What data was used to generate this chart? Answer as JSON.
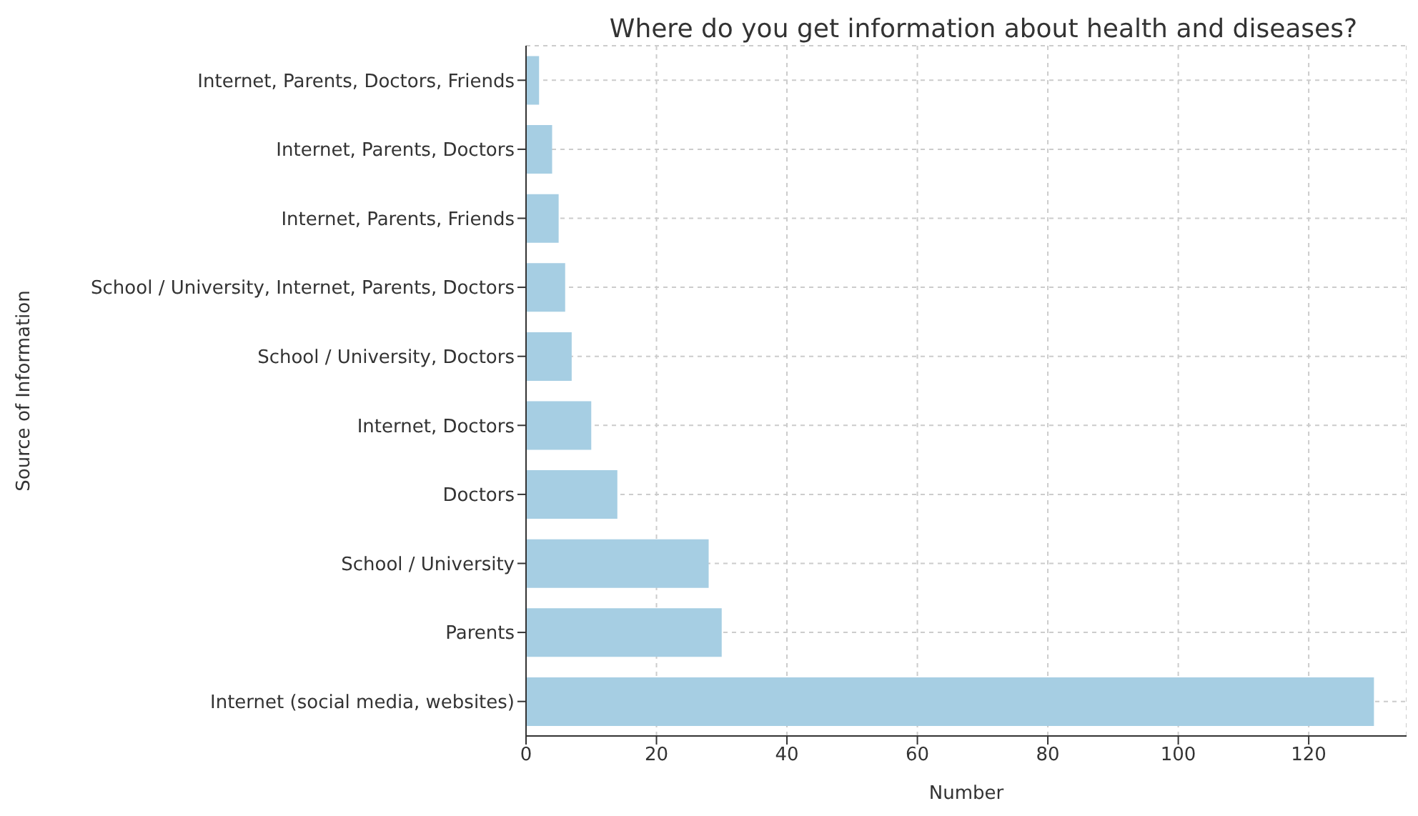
{
  "chart_data": {
    "type": "bar",
    "orientation": "horizontal",
    "title": "Where do you get information about health and diseases?",
    "xlabel": "Number",
    "ylabel": "Source of Information",
    "categories": [
      "Internet, Parents, Doctors, Friends",
      "Internet, Parents, Doctors",
      "Internet, Parents, Friends",
      "School / University, Internet, Parents, Doctors",
      "School / University, Doctors",
      "Internet, Doctors",
      "Doctors",
      "School / University",
      "Parents",
      "Internet (social media, websites)"
    ],
    "values": [
      2,
      4,
      5,
      6,
      7,
      10,
      14,
      28,
      30,
      130
    ],
    "color": "#a6cee3",
    "xlim": [
      0,
      135
    ],
    "xticks": [
      0,
      20,
      40,
      60,
      80,
      100,
      120
    ],
    "grid": true
  }
}
